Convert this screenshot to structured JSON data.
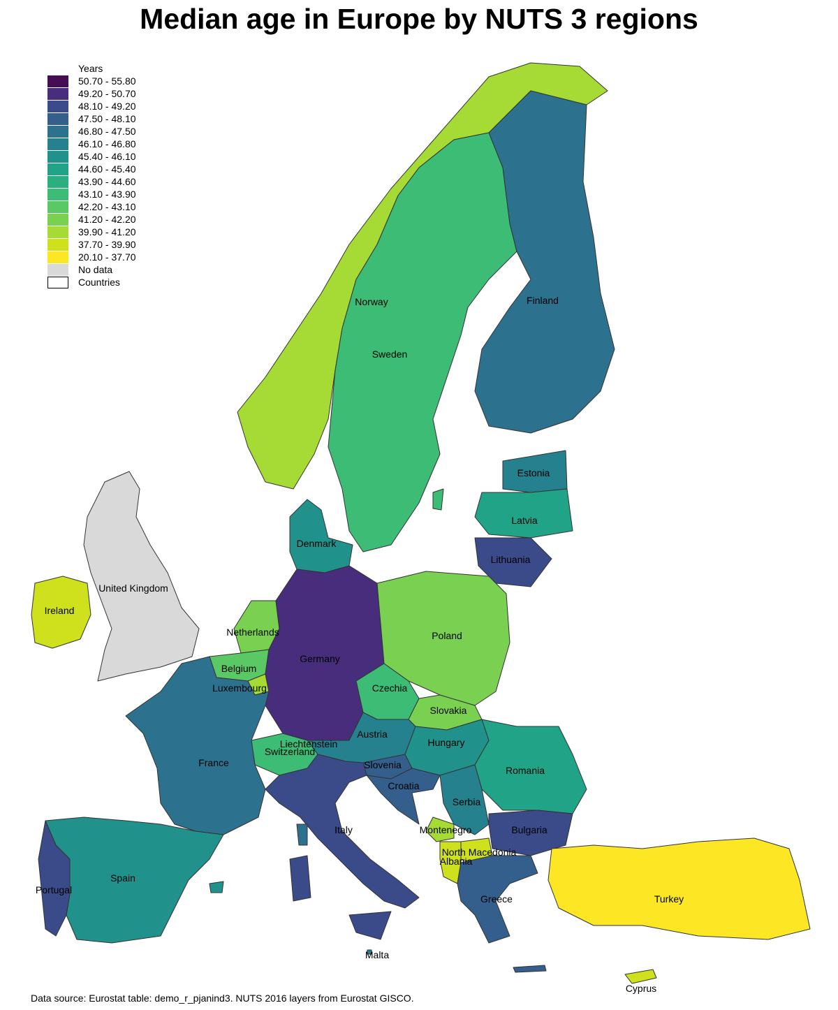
{
  "title": "Median age in Europe by NUTS 3 regions",
  "source": "Data source: Eurostat table: demo_r_pjanind3. NUTS 2016 layers from Eurostat GISCO.",
  "legend": {
    "title": "Years",
    "classes": [
      {
        "label": "50.70 - 55.80",
        "color": "#440d54"
      },
      {
        "label": "49.20 - 50.70",
        "color": "#472d7b"
      },
      {
        "label": "48.10 - 49.20",
        "color": "#3b4b8a"
      },
      {
        "label": "47.50 - 48.10",
        "color": "#345f8d"
      },
      {
        "label": "46.80 - 47.50",
        "color": "#2c718e"
      },
      {
        "label": "46.10 - 46.80",
        "color": "#26818e"
      },
      {
        "label": "45.40 - 46.10",
        "color": "#21918c"
      },
      {
        "label": "44.60 - 45.40",
        "color": "#20a386"
      },
      {
        "label": "43.90 - 44.60",
        "color": "#2ab07f"
      },
      {
        "label": "43.10 - 43.90",
        "color": "#3cbc74"
      },
      {
        "label": "42.20 - 43.10",
        "color": "#5ac864"
      },
      {
        "label": "41.20 - 42.20",
        "color": "#7ad151"
      },
      {
        "label": "39.90 - 41.20",
        "color": "#a6db35"
      },
      {
        "label": "37.70 - 39.90",
        "color": "#cfe11c"
      },
      {
        "label": "20.10 - 37.70",
        "color": "#fde725"
      },
      {
        "label": "No data",
        "color": "#d9d9d9"
      },
      {
        "label": "Countries",
        "color": "#ffffff"
      }
    ]
  },
  "countries": [
    {
      "name": "Norway",
      "color": "#a6db35"
    },
    {
      "name": "Sweden",
      "color": "#3cbc74"
    },
    {
      "name": "Finland",
      "color": "#2c718e"
    },
    {
      "name": "Estonia",
      "color": "#26818e"
    },
    {
      "name": "Latvia",
      "color": "#20a386"
    },
    {
      "name": "Lithuania",
      "color": "#3b4b8a"
    },
    {
      "name": "Denmark",
      "color": "#21918c"
    },
    {
      "name": "United Kingdom",
      "color": "#d9d9d9"
    },
    {
      "name": "Ireland",
      "color": "#cfe11c"
    },
    {
      "name": "Netherlands",
      "color": "#7ad151"
    },
    {
      "name": "Germany",
      "color": "#472d7b"
    },
    {
      "name": "Poland",
      "color": "#7ad151"
    },
    {
      "name": "Belgium",
      "color": "#5ac864"
    },
    {
      "name": "Luxembourg",
      "color": "#a6db35"
    },
    {
      "name": "Czechia",
      "color": "#3cbc74"
    },
    {
      "name": "Slovakia",
      "color": "#7ad151"
    },
    {
      "name": "Austria",
      "color": "#26818e"
    },
    {
      "name": "Liechtenstein",
      "color": "#2ab07f"
    },
    {
      "name": "Switzerland",
      "color": "#3cbc74"
    },
    {
      "name": "France",
      "color": "#2c718e"
    },
    {
      "name": "Hungary",
      "color": "#21918c"
    },
    {
      "name": "Romania",
      "color": "#20a386"
    },
    {
      "name": "Slovenia",
      "color": "#345f8d"
    },
    {
      "name": "Croatia",
      "color": "#345f8d"
    },
    {
      "name": "Serbia",
      "color": "#26818e"
    },
    {
      "name": "Montenegro",
      "color": "#a6db35"
    },
    {
      "name": "Bulgaria",
      "color": "#3b4b8a"
    },
    {
      "name": "North Macedonia",
      "color": "#cfe11c"
    },
    {
      "name": "Albania",
      "color": "#cfe11c"
    },
    {
      "name": "Italy",
      "color": "#3b4b8a"
    },
    {
      "name": "Spain",
      "color": "#21918c"
    },
    {
      "name": "Portugal",
      "color": "#3b4b8a"
    },
    {
      "name": "Greece",
      "color": "#345f8d"
    },
    {
      "name": "Turkey",
      "color": "#fde725"
    },
    {
      "name": "Malta",
      "color": "#26818e"
    },
    {
      "name": "Cyprus",
      "color": "#cfe11c"
    }
  ]
}
